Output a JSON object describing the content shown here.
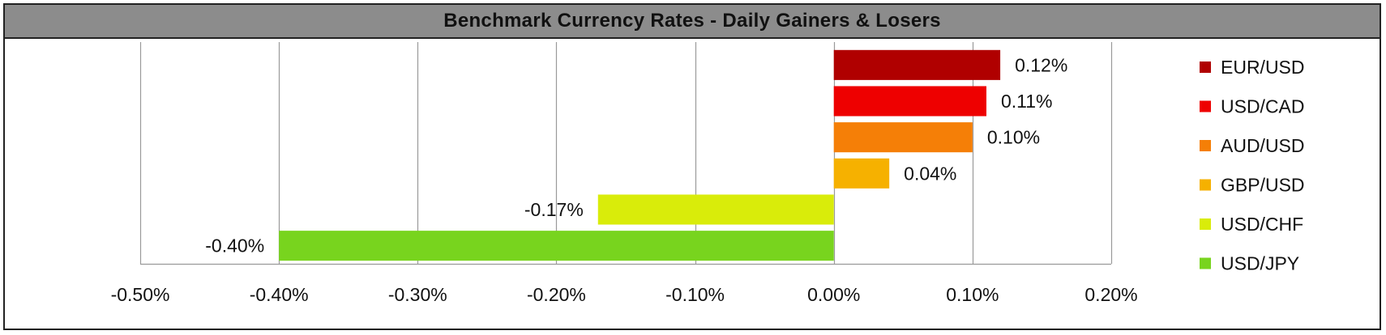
{
  "chart_data": {
    "type": "bar",
    "orientation": "horizontal",
    "title": "Benchmark Currency Rates - Daily Gainers & Losers",
    "categories": [
      "EUR/USD",
      "USD/CAD",
      "AUD/USD",
      "GBP/USD",
      "USD/CHF",
      "USD/JPY"
    ],
    "values": [
      0.12,
      0.11,
      0.1,
      0.04,
      -0.17,
      -0.4
    ],
    "data_labels": [
      "0.12%",
      "0.11%",
      "0.10%",
      "0.04%",
      "-0.17%",
      "-0.40%"
    ],
    "colors": [
      "#b00000",
      "#ee0000",
      "#f57f07",
      "#f6b100",
      "#d9ec0a",
      "#78d41e"
    ],
    "xlim": [
      -0.5,
      0.2
    ],
    "xticks": [
      -0.5,
      -0.4,
      -0.3,
      -0.2,
      -0.1,
      0.0,
      0.1,
      0.2
    ],
    "xtick_labels": [
      "-0.50%",
      "-0.40%",
      "-0.30%",
      "-0.20%",
      "-0.10%",
      "0.00%",
      "0.10%",
      "0.20%"
    ],
    "xlabel": "",
    "ylabel": "",
    "grid": "vertical",
    "legend": "right"
  }
}
